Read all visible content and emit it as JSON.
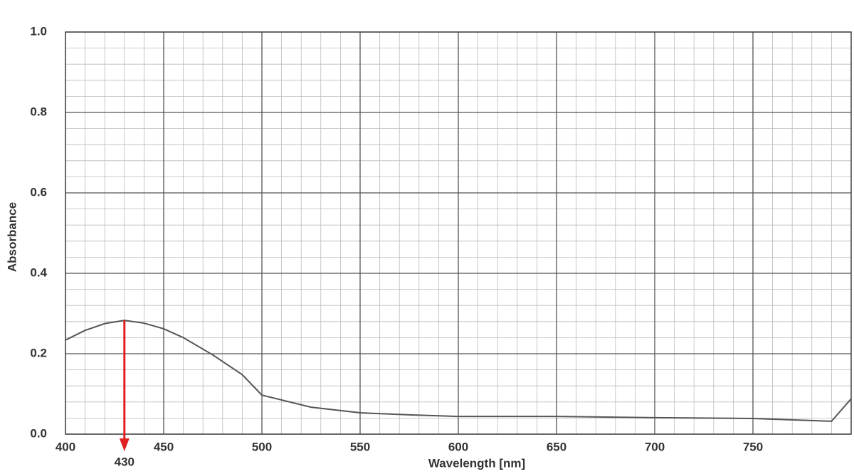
{
  "chart_data": {
    "type": "line",
    "x_label": "Wavelength [nm]",
    "y_label": "Absorbance",
    "xlim": [
      400,
      800
    ],
    "ylim": [
      0,
      1.0
    ],
    "xticks": [
      400,
      450,
      500,
      550,
      600,
      650,
      700,
      750
    ],
    "yticks": [
      {
        "value": 0,
        "label": "0.0"
      },
      {
        "value": 0.2,
        "label": "0.2"
      },
      {
        "value": 0.4,
        "label": "0.4"
      },
      {
        "value": 0.6,
        "label": "0.6"
      },
      {
        "value": 0.8,
        "label": "0.8"
      },
      {
        "value": 1.0,
        "label": "1.0"
      }
    ],
    "grid": true,
    "series": [
      {
        "color": "#555555",
        "x": [
          400,
          410,
          420,
          430,
          440,
          450,
          460,
          475,
          490,
          500,
          525,
          550,
          575,
          600,
          650,
          700,
          750,
          790,
          800
        ],
        "values": [
          0.234,
          0.258,
          0.275,
          0.283,
          0.276,
          0.262,
          0.24,
          0.197,
          0.148,
          0.097,
          0.067,
          0.053,
          0.048,
          0.044,
          0.044,
          0.041,
          0.039,
          0.032,
          0.088
        ]
      }
    ],
    "peak_annotation": {
      "x": 430,
      "color": "#e02020"
    }
  }
}
